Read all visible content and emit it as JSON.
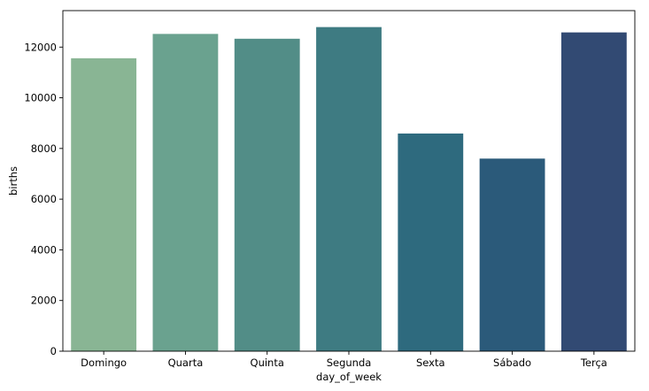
{
  "chart_data": {
    "type": "bar",
    "categories": [
      "Domingo",
      "Quarta",
      "Quinta",
      "Segunda",
      "Sexta",
      "Sábado",
      "Terça"
    ],
    "values": [
      11560,
      12520,
      12330,
      12790,
      8590,
      7600,
      12580
    ],
    "colors": [
      "#89b594",
      "#6aa28f",
      "#528d87",
      "#3e7b82",
      "#2e6a7e",
      "#2b5a7a",
      "#324a73"
    ],
    "xlabel": "day_of_week",
    "ylabel": "births",
    "ylim": [
      0,
      13440
    ],
    "yticks": [
      0,
      2000,
      4000,
      6000,
      8000,
      10000,
      12000
    ],
    "grid": false,
    "legend": "none"
  }
}
